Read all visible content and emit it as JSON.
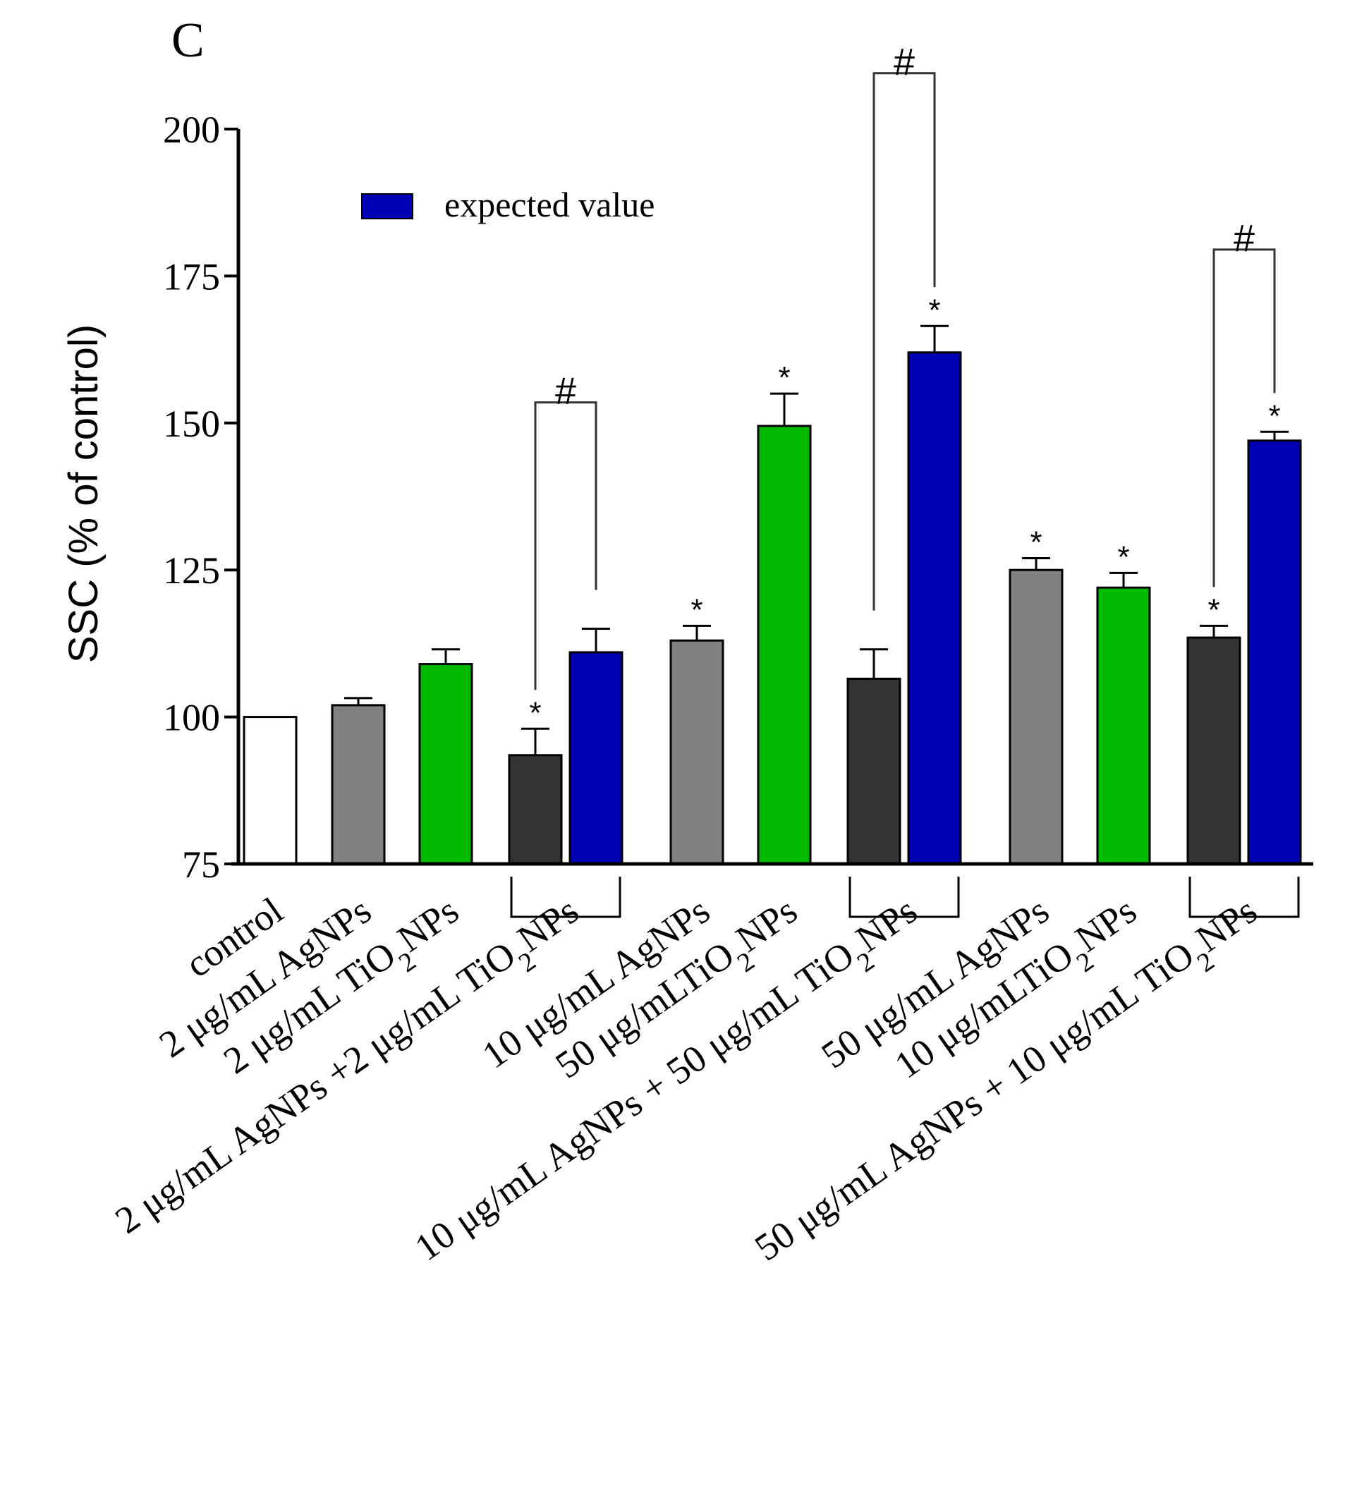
{
  "chart_data": {
    "type": "bar",
    "panel_label": "C",
    "title": "",
    "ylabel": "SSC (% of control)",
    "xlabel": "",
    "ylim": [
      75,
      200
    ],
    "yticks": [
      75,
      100,
      125,
      150,
      175,
      200
    ],
    "legend": {
      "label": "expected value",
      "color": "#0000b4",
      "placement": "top-left"
    },
    "colors": {
      "white": "#ffffff",
      "gray": "#808080",
      "green": "#00bb00",
      "dark": "#333333",
      "blue": "#0000b4"
    },
    "bars": [
      {
        "group": 0,
        "color": "white",
        "value": 100,
        "err": 0,
        "star": false
      },
      {
        "group": 1,
        "color": "gray",
        "value": 102,
        "err": 1.2,
        "star": false
      },
      {
        "group": 2,
        "color": "green",
        "value": 109,
        "err": 2.5,
        "star": false
      },
      {
        "group": 3,
        "color": "dark",
        "value": 93.5,
        "err": 4.5,
        "star": true
      },
      {
        "group": 3,
        "color": "blue",
        "value": 111,
        "err": 4,
        "star": false
      },
      {
        "group": 4,
        "color": "gray",
        "value": 113,
        "err": 2.5,
        "star": true
      },
      {
        "group": 5,
        "color": "green",
        "value": 149.5,
        "err": 5.5,
        "star": true
      },
      {
        "group": 6,
        "color": "dark",
        "value": 106.5,
        "err": 5,
        "star": false
      },
      {
        "group": 6,
        "color": "blue",
        "value": 162,
        "err": 4.5,
        "star": true
      },
      {
        "group": 7,
        "color": "gray",
        "value": 125,
        "err": 2,
        "star": true
      },
      {
        "group": 8,
        "color": "green",
        "value": 122,
        "err": 2.5,
        "star": true
      },
      {
        "group": 9,
        "color": "dark",
        "value": 113.5,
        "err": 2,
        "star": true
      },
      {
        "group": 9,
        "color": "blue",
        "value": 147,
        "err": 1.5,
        "star": true
      }
    ],
    "categories": [
      {
        "parts": [
          [
            "control",
            false
          ]
        ]
      },
      {
        "parts": [
          [
            "2 μg/mL AgNPs",
            false
          ]
        ]
      },
      {
        "parts": [
          [
            "2 μg/mL TiO",
            false
          ],
          [
            "2",
            true
          ],
          [
            "NPs",
            false
          ]
        ]
      },
      {
        "parts": [
          [
            "2 μg/mL AgNPs +2 μg/mL TiO",
            false
          ],
          [
            "2",
            true
          ],
          [
            "NPs",
            false
          ]
        ]
      },
      {
        "parts": [
          [
            "10 μg/mL AgNPs",
            false
          ]
        ]
      },
      {
        "parts": [
          [
            "50 μg/mLTiO",
            false
          ],
          [
            "2",
            true
          ],
          [
            "NPs",
            false
          ]
        ]
      },
      {
        "parts": [
          [
            "10 μg/mL AgNPs + 50 μg/mL TiO",
            false
          ],
          [
            "2",
            true
          ],
          [
            "NPs",
            false
          ]
        ]
      },
      {
        "parts": [
          [
            "50 μg/mL AgNPs",
            false
          ]
        ]
      },
      {
        "parts": [
          [
            "10 μg/mLTiO",
            false
          ],
          [
            "2",
            true
          ],
          [
            "NPs",
            false
          ]
        ]
      },
      {
        "parts": [
          [
            "50 μg/mL AgNPs + 10 μg/mL TiO",
            false
          ],
          [
            "2",
            true
          ],
          [
            "NPs",
            false
          ]
        ]
      }
    ],
    "significance_brackets": [
      {
        "group": 3,
        "mark": "#",
        "top": 153.5
      },
      {
        "group": 6,
        "mark": "#",
        "top": 209.5
      },
      {
        "group": 9,
        "mark": "#",
        "top": 179.5
      }
    ],
    "star_mark": "*"
  }
}
